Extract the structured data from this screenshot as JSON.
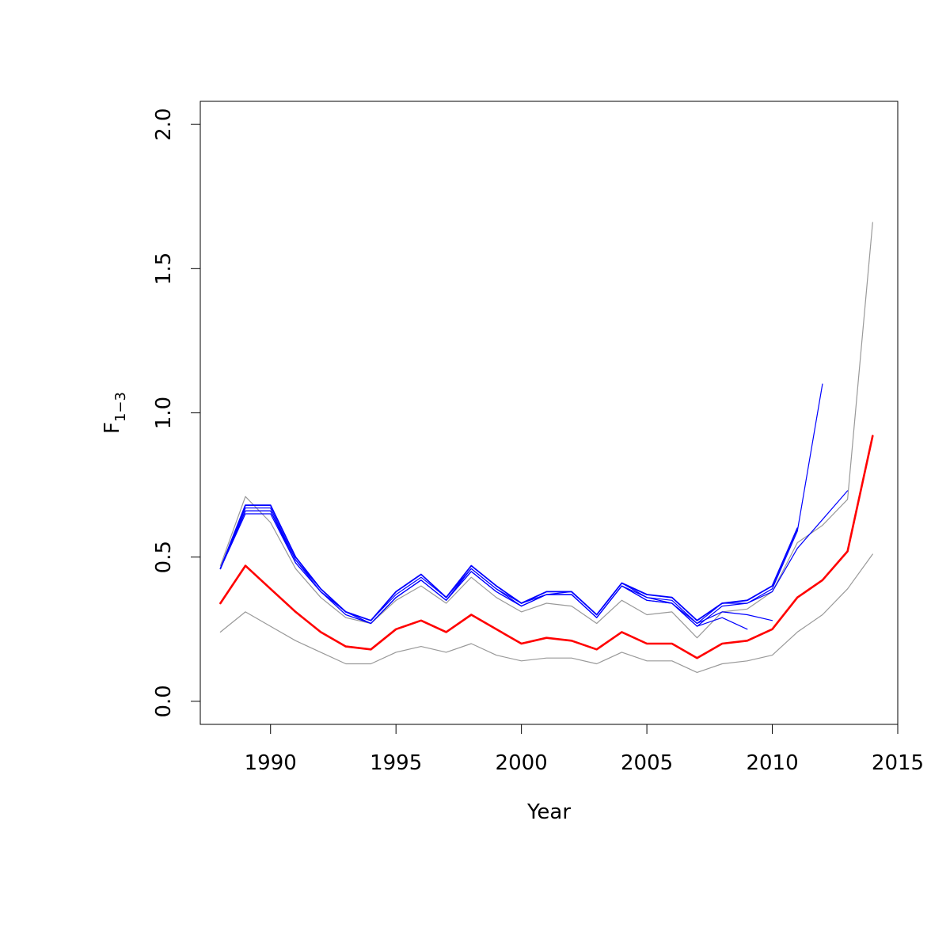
{
  "chart_data": {
    "type": "line",
    "title": "",
    "xlabel": "Year",
    "ylabel_main": "F",
    "ylabel_sub": "1−3",
    "xlim": [
      1987.2,
      2015.0
    ],
    "ylim": [
      -0.08,
      2.08
    ],
    "xticks": [
      1990,
      1995,
      2000,
      2005,
      2010,
      2015
    ],
    "xtick_labels": [
      "1990",
      "1995",
      "2000",
      "2005",
      "2010",
      "2015"
    ],
    "yticks": [
      0.0,
      0.5,
      1.0,
      1.5,
      2.0
    ],
    "ytick_labels": [
      "0.0",
      "0.5",
      "1.0",
      "1.5",
      "2.0"
    ],
    "grid": false,
    "legend": "none",
    "colors": {
      "estimate": "#ff0000",
      "retro": "#0000ff",
      "ci": "#999999",
      "axis": "#000000"
    },
    "series": [
      {
        "role": "estimate",
        "color": "#ff0000",
        "width": 2.6,
        "x": [
          1988,
          1989,
          1990,
          1991,
          1992,
          1993,
          1994,
          1995,
          1996,
          1997,
          1998,
          1999,
          2000,
          2001,
          2002,
          2003,
          2004,
          2005,
          2006,
          2007,
          2008,
          2009,
          2010,
          2011,
          2012,
          2013,
          2014
        ],
        "values": [
          0.34,
          0.47,
          0.39,
          0.31,
          0.24,
          0.19,
          0.18,
          0.25,
          0.28,
          0.24,
          0.3,
          0.25,
          0.2,
          0.22,
          0.21,
          0.18,
          0.24,
          0.2,
          0.2,
          0.15,
          0.2,
          0.21,
          0.25,
          0.36,
          0.42,
          0.52,
          0.92
        ]
      },
      {
        "role": "ci-upper",
        "color": "#999999",
        "width": 1.2,
        "x": [
          1988,
          1989,
          1990,
          1991,
          1992,
          1993,
          1994,
          1995,
          1996,
          1997,
          1998,
          1999,
          2000,
          2001,
          2002,
          2003,
          2004,
          2005,
          2006,
          2007,
          2008,
          2009,
          2010,
          2011,
          2012,
          2013,
          2014
        ],
        "values": [
          0.47,
          0.71,
          0.62,
          0.46,
          0.36,
          0.29,
          0.27,
          0.35,
          0.4,
          0.34,
          0.43,
          0.36,
          0.31,
          0.34,
          0.33,
          0.27,
          0.35,
          0.3,
          0.31,
          0.22,
          0.31,
          0.32,
          0.38,
          0.55,
          0.61,
          0.7,
          1.66
        ]
      },
      {
        "role": "ci-lower",
        "color": "#999999",
        "width": 1.2,
        "x": [
          1988,
          1989,
          1990,
          1991,
          1992,
          1993,
          1994,
          1995,
          1996,
          1997,
          1998,
          1999,
          2000,
          2001,
          2002,
          2003,
          2004,
          2005,
          2006,
          2007,
          2008,
          2009,
          2010,
          2011,
          2012,
          2013,
          2014
        ],
        "values": [
          0.24,
          0.31,
          0.26,
          0.21,
          0.17,
          0.13,
          0.13,
          0.17,
          0.19,
          0.17,
          0.2,
          0.16,
          0.14,
          0.15,
          0.15,
          0.13,
          0.17,
          0.14,
          0.14,
          0.1,
          0.13,
          0.14,
          0.16,
          0.24,
          0.3,
          0.39,
          0.51
        ]
      },
      {
        "role": "retro",
        "color": "#0000ff",
        "width": 1.2,
        "x": [
          1988,
          1989,
          1990,
          1991,
          1992,
          1993,
          1994,
          1995,
          1996,
          1997,
          1998,
          1999,
          2000,
          2001,
          2002,
          2003,
          2004,
          2005,
          2006,
          2007,
          2008,
          2009
        ],
        "values": [
          0.46,
          0.65,
          0.65,
          0.48,
          0.38,
          0.3,
          0.27,
          0.36,
          0.42,
          0.35,
          0.45,
          0.38,
          0.33,
          0.37,
          0.37,
          0.29,
          0.4,
          0.35,
          0.34,
          0.26,
          0.29,
          0.25
        ]
      },
      {
        "role": "retro",
        "color": "#0000ff",
        "width": 1.2,
        "x": [
          1988,
          1989,
          1990,
          1991,
          1992,
          1993,
          1994,
          1995,
          1996,
          1997,
          1998,
          1999,
          2000,
          2001,
          2002,
          2003,
          2004,
          2005,
          2006,
          2007,
          2008,
          2009,
          2010
        ],
        "values": [
          0.46,
          0.66,
          0.66,
          0.49,
          0.38,
          0.31,
          0.27,
          0.36,
          0.42,
          0.35,
          0.46,
          0.39,
          0.33,
          0.37,
          0.37,
          0.29,
          0.4,
          0.36,
          0.34,
          0.27,
          0.31,
          0.3,
          0.28
        ]
      },
      {
        "role": "retro",
        "color": "#0000ff",
        "width": 1.2,
        "x": [
          1988,
          1989,
          1990,
          1991,
          1992,
          1993,
          1994,
          1995,
          1996,
          1997,
          1998,
          1999,
          2000,
          2001,
          2002,
          2003,
          2004,
          2005,
          2006,
          2007,
          2008,
          2009,
          2010,
          2011,
          2012
        ],
        "values": [
          0.46,
          0.67,
          0.67,
          0.49,
          0.39,
          0.31,
          0.28,
          0.37,
          0.43,
          0.36,
          0.46,
          0.39,
          0.34,
          0.37,
          0.38,
          0.3,
          0.41,
          0.36,
          0.35,
          0.27,
          0.34,
          0.34,
          0.39,
          0.59,
          1.1
        ]
      },
      {
        "role": "retro",
        "color": "#0000ff",
        "width": 1.2,
        "x": [
          1988,
          1989,
          1990,
          1991,
          1992,
          1993,
          1994,
          1995,
          1996,
          1997,
          1998,
          1999,
          2000,
          2001,
          2002,
          2003,
          2004,
          2005,
          2006,
          2007,
          2008,
          2009,
          2010,
          2011,
          2012,
          2013
        ],
        "values": [
          0.46,
          0.66,
          0.66,
          0.48,
          0.38,
          0.31,
          0.27,
          0.36,
          0.42,
          0.35,
          0.45,
          0.38,
          0.33,
          0.37,
          0.37,
          0.29,
          0.4,
          0.35,
          0.34,
          0.26,
          0.33,
          0.34,
          0.38,
          0.53,
          0.63,
          0.73
        ]
      },
      {
        "role": "retro",
        "color": "#0000ff",
        "width": 1.8,
        "x": [
          1988,
          1989,
          1990,
          1991,
          1992,
          1993,
          1994,
          1995,
          1996,
          1997,
          1998,
          1999,
          2000,
          2001,
          2002,
          2003,
          2004,
          2005,
          2006,
          2007,
          2008,
          2009,
          2010,
          2011
        ],
        "values": [
          0.46,
          0.68,
          0.68,
          0.5,
          0.39,
          0.31,
          0.28,
          0.38,
          0.44,
          0.36,
          0.47,
          0.4,
          0.34,
          0.38,
          0.38,
          0.3,
          0.41,
          0.37,
          0.36,
          0.28,
          0.34,
          0.35,
          0.4,
          0.6
        ]
      }
    ]
  }
}
